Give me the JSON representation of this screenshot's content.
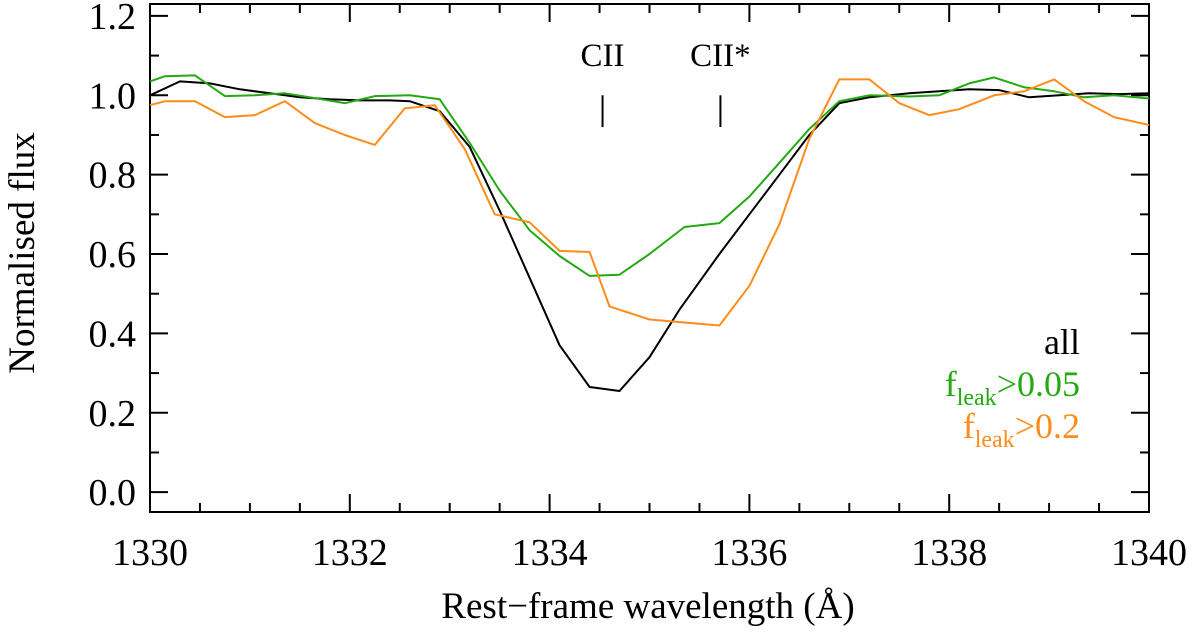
{
  "chart_data": {
    "type": "line",
    "title": "",
    "xlabel": "Rest−frame wavelength (Å)",
    "ylabel": "Normalised flux",
    "xlim": [
      1330,
      1340
    ],
    "ylim": [
      -0.05,
      1.23
    ],
    "xticks": [
      1330,
      1332,
      1334,
      1336,
      1338,
      1340
    ],
    "xtick_labels": [
      "1330",
      "1332",
      "1334",
      "1336",
      "1338",
      "1340"
    ],
    "yticks": [
      0.0,
      0.2,
      0.4,
      0.6,
      0.8,
      1.0,
      1.2
    ],
    "ytick_labels": [
      "0.0",
      "0.2",
      "0.4",
      "0.6",
      "0.8",
      "1.0",
      "1.2"
    ],
    "grid": false,
    "legend_position": "bottom-right",
    "line_markers": [
      {
        "label": "CII",
        "x": 1334.53,
        "y_range": [
          0.92,
          1.0
        ]
      },
      {
        "label": "CII*",
        "x": 1335.71,
        "y_range": [
          0.92,
          1.0
        ]
      }
    ],
    "series": [
      {
        "name": "all",
        "legend_text": "all",
        "color": "#000000",
        "x": [
          1330.0,
          1330.3,
          1330.6,
          1330.9,
          1331.2,
          1331.5,
          1331.8,
          1332.1,
          1332.4,
          1332.6,
          1332.9,
          1333.2,
          1333.5,
          1333.8,
          1334.1,
          1334.4,
          1334.7,
          1335.0,
          1335.3,
          1335.7,
          1336.0,
          1336.3,
          1336.6,
          1336.9,
          1337.2,
          1337.6,
          1337.9,
          1338.2,
          1338.5,
          1338.8,
          1339.1,
          1339.4,
          1339.7,
          1340.0
        ],
        "y": [
          1.0,
          1.035,
          1.03,
          1.015,
          1.005,
          0.995,
          0.99,
          0.987,
          0.987,
          0.985,
          0.96,
          0.87,
          0.71,
          0.54,
          0.37,
          0.265,
          0.255,
          0.34,
          0.46,
          0.6,
          0.7,
          0.8,
          0.9,
          0.98,
          0.995,
          1.005,
          1.01,
          1.015,
          1.013,
          0.995,
          1.0,
          1.005,
          1.003,
          1.005
        ]
      },
      {
        "name": "fleak>0.05",
        "legend_prefix": "f",
        "legend_sub": "leak",
        "legend_suffix": ">0.05",
        "color": "#22aa11",
        "x": [
          1330.0,
          1330.15,
          1330.45,
          1330.75,
          1331.05,
          1331.35,
          1331.65,
          1331.95,
          1332.25,
          1332.6,
          1332.9,
          1333.2,
          1333.5,
          1333.8,
          1334.1,
          1334.4,
          1334.7,
          1335.0,
          1335.35,
          1335.7,
          1336.0,
          1336.3,
          1336.6,
          1336.9,
          1337.2,
          1337.6,
          1337.9,
          1338.2,
          1338.45,
          1338.75,
          1339.05,
          1339.35,
          1339.65,
          1340.0
        ],
        "y": [
          1.035,
          1.048,
          1.05,
          0.998,
          1.0,
          1.005,
          0.993,
          0.98,
          0.998,
          1.0,
          0.99,
          0.88,
          0.76,
          0.66,
          0.595,
          0.545,
          0.548,
          0.6,
          0.668,
          0.678,
          0.745,
          0.83,
          0.915,
          0.985,
          1.0,
          0.997,
          1.0,
          1.03,
          1.045,
          1.02,
          1.01,
          0.995,
          1.0,
          0.992
        ]
      },
      {
        "name": "fleak>0.2",
        "legend_prefix": "f",
        "legend_sub": "leak",
        "legend_suffix": ">0.2",
        "color": "#ff8c1a",
        "x": [
          1330.0,
          1330.15,
          1330.45,
          1330.75,
          1331.05,
          1331.35,
          1331.65,
          1331.95,
          1332.25,
          1332.55,
          1332.85,
          1333.15,
          1333.45,
          1333.8,
          1334.1,
          1334.4,
          1334.6,
          1335.0,
          1335.7,
          1336.0,
          1336.3,
          1336.6,
          1336.9,
          1337.2,
          1337.5,
          1337.8,
          1338.1,
          1338.45,
          1338.75,
          1339.05,
          1339.35,
          1339.65,
          1340.0
        ],
        "y": [
          0.975,
          0.985,
          0.985,
          0.945,
          0.95,
          0.985,
          0.93,
          0.9,
          0.875,
          0.967,
          0.975,
          0.865,
          0.7,
          0.68,
          0.608,
          0.605,
          0.468,
          0.435,
          0.42,
          0.52,
          0.675,
          0.89,
          1.04,
          1.04,
          0.98,
          0.95,
          0.965,
          1.0,
          1.01,
          1.04,
          0.985,
          0.945,
          0.925
        ]
      }
    ]
  }
}
